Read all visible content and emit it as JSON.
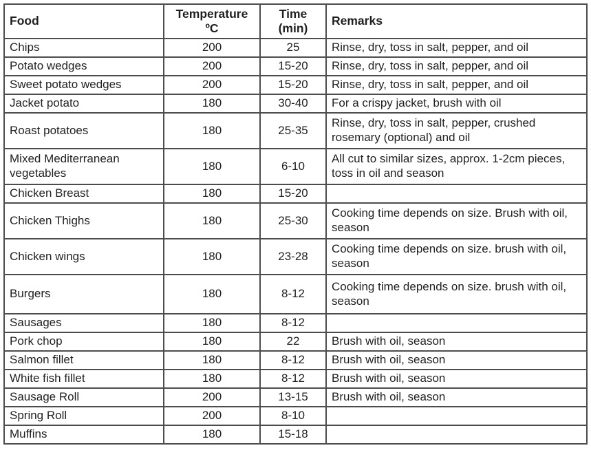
{
  "colors": {
    "border": "#4c4c4e",
    "text": "#211f20",
    "background": "#ffffff"
  },
  "table": {
    "header": {
      "food": "Food",
      "temperature_line1": "Temperature",
      "temperature_line2": "ºC",
      "time_line1": "Time",
      "time_line2": "(min)",
      "remarks": "Remarks"
    },
    "rows": [
      {
        "food": "Chips",
        "temperature": "200",
        "time": "25",
        "remarks": "Rinse, dry, toss in salt, pepper, and oil"
      },
      {
        "food": "Potato wedges",
        "temperature": "200",
        "time": "15-20",
        "remarks": "Rinse, dry, toss in salt, pepper, and oil"
      },
      {
        "food": "Sweet potato wedges",
        "temperature": "200",
        "time": "15-20",
        "remarks": "Rinse, dry, toss in salt, pepper, and oil"
      },
      {
        "food": "Jacket potato",
        "temperature": "180",
        "time": "30-40",
        "remarks": "For a crispy jacket, brush with oil"
      },
      {
        "food": "Roast potatoes",
        "temperature": "180",
        "time": "25-35",
        "remarks": "Rinse, dry, toss in salt, pepper, crushed rosemary (optional) and oil"
      },
      {
        "food": "Mixed Mediterranean vegetables",
        "temperature": "180",
        "time": "6-10",
        "remarks": "All cut to similar sizes, approx. 1-2cm pieces, toss in oil and season"
      },
      {
        "food": "Chicken Breast",
        "temperature": "180",
        "time": "15-20",
        "remarks": ""
      },
      {
        "food": "Chicken Thighs",
        "temperature": "180",
        "time": "25-30",
        "remarks": "Cooking time depends on size. Brush with oil, season"
      },
      {
        "food": "Chicken wings",
        "temperature": "180",
        "time": "23-28",
        "remarks": "Cooking time depends on size. brush with oil, season"
      },
      {
        "food": "Burgers",
        "temperature": "180",
        "time": "8-12",
        "remarks": "Cooking time depends on size. brush with oil, season"
      },
      {
        "food": "Sausages",
        "temperature": "180",
        "time": "8-12",
        "remarks": ""
      },
      {
        "food": "Pork chop",
        "temperature": "180",
        "time": "22",
        "remarks": "Brush with oil, season"
      },
      {
        "food": "Salmon fillet",
        "temperature": "180",
        "time": "8-12",
        "remarks": "Brush with oil, season"
      },
      {
        "food": "White fish fillet",
        "temperature": "180",
        "time": "8-12",
        "remarks": "Brush with oil, season"
      },
      {
        "food": "Sausage Roll",
        "temperature": "200",
        "time": "13-15",
        "remarks": "Brush with oil, season"
      },
      {
        "food": "Spring Roll",
        "temperature": "200",
        "time": "8-10",
        "remarks": ""
      },
      {
        "food": "Muffins",
        "temperature": "180",
        "time": "15-18",
        "remarks": ""
      }
    ]
  }
}
